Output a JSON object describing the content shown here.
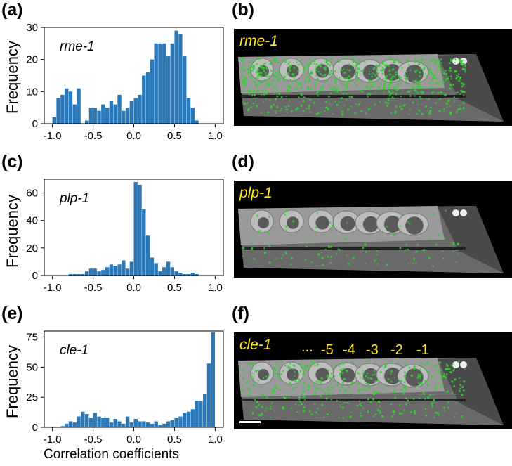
{
  "panels": {
    "a": "(a)",
    "b": "(b)",
    "c": "(c)",
    "d": "(d)",
    "e": "(e)",
    "f": "(f)"
  },
  "common": {
    "ylabel": "Frequency",
    "xlabel": "Correlation coefficients",
    "bar_color": "#2a78b8",
    "xticks": [
      "-1.0",
      "-0.5",
      "0.0",
      "0.5",
      "1.0"
    ]
  },
  "images": {
    "b": {
      "gene": "rme-1"
    },
    "d": {
      "gene": "plp-1"
    },
    "f": {
      "gene": "cle-1",
      "stages": [
        "...",
        "-5",
        "-4",
        "-3",
        "-2",
        "-1"
      ]
    },
    "label_color": "#ffe81a",
    "signal_color": "#2bd42b"
  },
  "chart_data": [
    {
      "type": "bar",
      "gene": "rme-1",
      "xlim": [
        -1.1,
        1.1
      ],
      "ylim": [
        0,
        30
      ],
      "yticks": [
        "0",
        "10",
        "20",
        "30"
      ],
      "bin_width": 0.05,
      "x": [
        -0.975,
        -0.925,
        -0.875,
        -0.825,
        -0.775,
        -0.725,
        -0.675,
        -0.625,
        -0.575,
        -0.525,
        -0.475,
        -0.425,
        -0.375,
        -0.325,
        -0.275,
        -0.225,
        -0.175,
        -0.125,
        -0.075,
        -0.025,
        0.025,
        0.075,
        0.125,
        0.175,
        0.225,
        0.275,
        0.325,
        0.375,
        0.425,
        0.475,
        0.525,
        0.575,
        0.625,
        0.675,
        0.725,
        0.775,
        0.825,
        0.875
      ],
      "values": [
        2,
        8,
        9,
        11,
        10,
        6,
        11,
        0,
        1,
        5,
        5,
        4,
        6,
        5,
        7,
        6,
        9,
        4,
        5,
        7,
        8,
        9,
        15,
        16,
        20,
        25,
        25,
        25,
        21,
        25,
        29,
        28,
        21,
        8,
        5,
        1,
        0,
        0
      ]
    },
    {
      "type": "bar",
      "gene": "plp-1",
      "xlim": [
        -1.1,
        1.1
      ],
      "ylim": [
        0,
        70
      ],
      "yticks": [
        "0",
        "20",
        "40",
        "60"
      ],
      "bin_width": 0.05,
      "x": [
        -0.825,
        -0.775,
        -0.725,
        -0.675,
        -0.625,
        -0.575,
        -0.525,
        -0.475,
        -0.425,
        -0.375,
        -0.325,
        -0.275,
        -0.225,
        -0.175,
        -0.125,
        -0.075,
        -0.025,
        0.025,
        0.075,
        0.125,
        0.175,
        0.225,
        0.275,
        0.325,
        0.375,
        0.425,
        0.475,
        0.525,
        0.575,
        0.625,
        0.675,
        0.725,
        0.775,
        0.825,
        0.875,
        0.925
      ],
      "values": [
        0,
        1,
        1,
        1,
        1,
        3,
        5,
        5,
        3,
        4,
        6,
        8,
        7,
        8,
        11,
        5,
        10,
        68,
        66,
        48,
        29,
        13,
        9,
        3,
        6,
        10,
        6,
        3,
        2,
        1,
        1,
        2,
        1,
        0,
        0,
        0
      ]
    },
    {
      "type": "bar",
      "gene": "cle-1",
      "xlim": [
        -1.1,
        1.1
      ],
      "ylim": [
        0,
        80
      ],
      "yticks": [
        "0",
        "25",
        "50",
        "75"
      ],
      "bin_width": 0.05,
      "x": [
        -0.925,
        -0.875,
        -0.825,
        -0.775,
        -0.725,
        -0.675,
        -0.625,
        -0.575,
        -0.525,
        -0.475,
        -0.425,
        -0.375,
        -0.325,
        -0.275,
        -0.225,
        -0.175,
        -0.125,
        -0.075,
        -0.025,
        0.025,
        0.075,
        0.125,
        0.175,
        0.225,
        0.275,
        0.325,
        0.375,
        0.425,
        0.475,
        0.525,
        0.575,
        0.625,
        0.675,
        0.725,
        0.775,
        0.825,
        0.875,
        0.925,
        0.975
      ],
      "values": [
        0,
        1,
        3,
        5,
        4,
        9,
        13,
        11,
        8,
        12,
        9,
        8,
        8,
        4,
        7,
        5,
        3,
        9,
        4,
        7,
        5,
        5,
        4,
        3,
        5,
        2,
        3,
        5,
        6,
        8,
        9,
        12,
        13,
        15,
        22,
        22,
        28,
        53,
        79
      ]
    }
  ]
}
